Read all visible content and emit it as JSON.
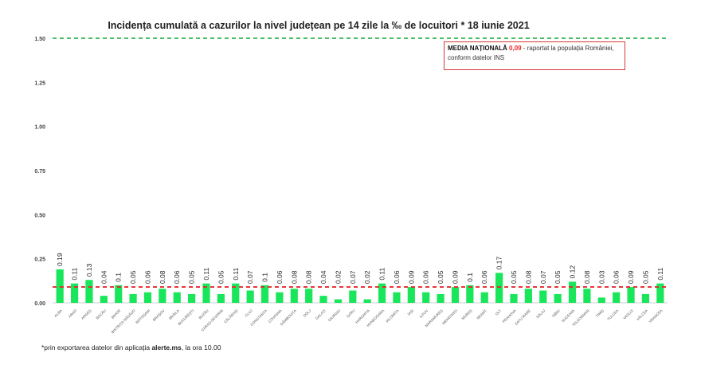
{
  "chart_data": {
    "type": "bar",
    "title": "Incidența cumulată a cazurilor la nivel județean pe 14 zile la ‰ de locuitori *  18 iunie 2021",
    "xlabel": "",
    "ylabel": "",
    "ylim": [
      0,
      1.5
    ],
    "yticks": [
      "0.00",
      "0.25",
      "0.50",
      "0.75",
      "1.00",
      "1.25",
      "1.50"
    ],
    "categories": [
      "ALBA",
      "ARAD",
      "ARGEȘ",
      "BACĂU",
      "BIHOR",
      "BISTRIȚA-NĂSĂUD",
      "BOTOȘANI",
      "BRAȘOV",
      "BRĂILA",
      "BUCUREȘTI",
      "BUZĂU",
      "CARAȘ-SEVERIN",
      "CĂLĂRAȘI",
      "CLUJ",
      "CONSTANȚA",
      "COVASNA",
      "DÂMBOVIȚA",
      "DOLJ",
      "GALAȚI",
      "GIURGIU",
      "GORJ",
      "HARGHITA",
      "HUNEDOARA",
      "IALOMIȚA",
      "IAȘI",
      "ILFOV",
      "MARAMUREȘ",
      "MEHEDINȚI",
      "MUREȘ",
      "NEAMȚ",
      "OLT",
      "PRAHOVA",
      "SATU MARE",
      "SĂLAJ",
      "SIBIU",
      "SUCEAVA",
      "TELEORMAN",
      "TIMIȘ",
      "TULCEA",
      "VASLUI",
      "VÂLCEA",
      "VRANCEA"
    ],
    "values": [
      0.19,
      0.11,
      0.13,
      0.04,
      0.1,
      0.05,
      0.06,
      0.08,
      0.06,
      0.05,
      0.11,
      0.05,
      0.11,
      0.07,
      0.1,
      0.06,
      0.08,
      0.08,
      0.04,
      0.02,
      0.07,
      0.02,
      0.11,
      0.06,
      0.09,
      0.06,
      0.05,
      0.09,
      0.1,
      0.06,
      0.17,
      0.05,
      0.08,
      0.07,
      0.05,
      0.12,
      0.08,
      0.03,
      0.06,
      0.09,
      0.05,
      0.11
    ],
    "value_labels": [
      "0.19",
      "0.11",
      "0.13",
      "0.04",
      "0.1",
      "0.05",
      "0.06",
      "0.08",
      "0.06",
      "0.05",
      "0.11",
      "0.05",
      "0.11",
      "0.07",
      "0.1",
      "0.06",
      "0.08",
      "0.08",
      "0.04",
      "0.02",
      "0.07",
      "0.02",
      "0.11",
      "0.06",
      "0.09",
      "0.06",
      "0.05",
      "0.09",
      "0.1",
      "0.06",
      "0.17",
      "0.05",
      "0.08",
      "0.07",
      "0.05",
      "0.12",
      "0.08",
      "0.03",
      "0.06",
      "0.09",
      "0.05",
      "0.11"
    ],
    "reference_lines": [
      {
        "name": "national-average",
        "value": 0.09,
        "style": "dashed",
        "color": "#e8262a"
      },
      {
        "name": "threshold",
        "value": 1.5,
        "style": "dashed",
        "color": "#2fb552"
      }
    ],
    "bar_color": "#19e65a",
    "grid": false,
    "legend_position": "top-right"
  },
  "legend": {
    "label_bold": "MEDIA NAȚIONALĂ",
    "value": "0,09",
    "text": " - raportat la populația României, conform datelor INS"
  },
  "footnote": {
    "prefix": "*prin exportarea datelor din aplicația ",
    "app": "alerte.ms",
    "suffix": ", la ora 10.00"
  }
}
